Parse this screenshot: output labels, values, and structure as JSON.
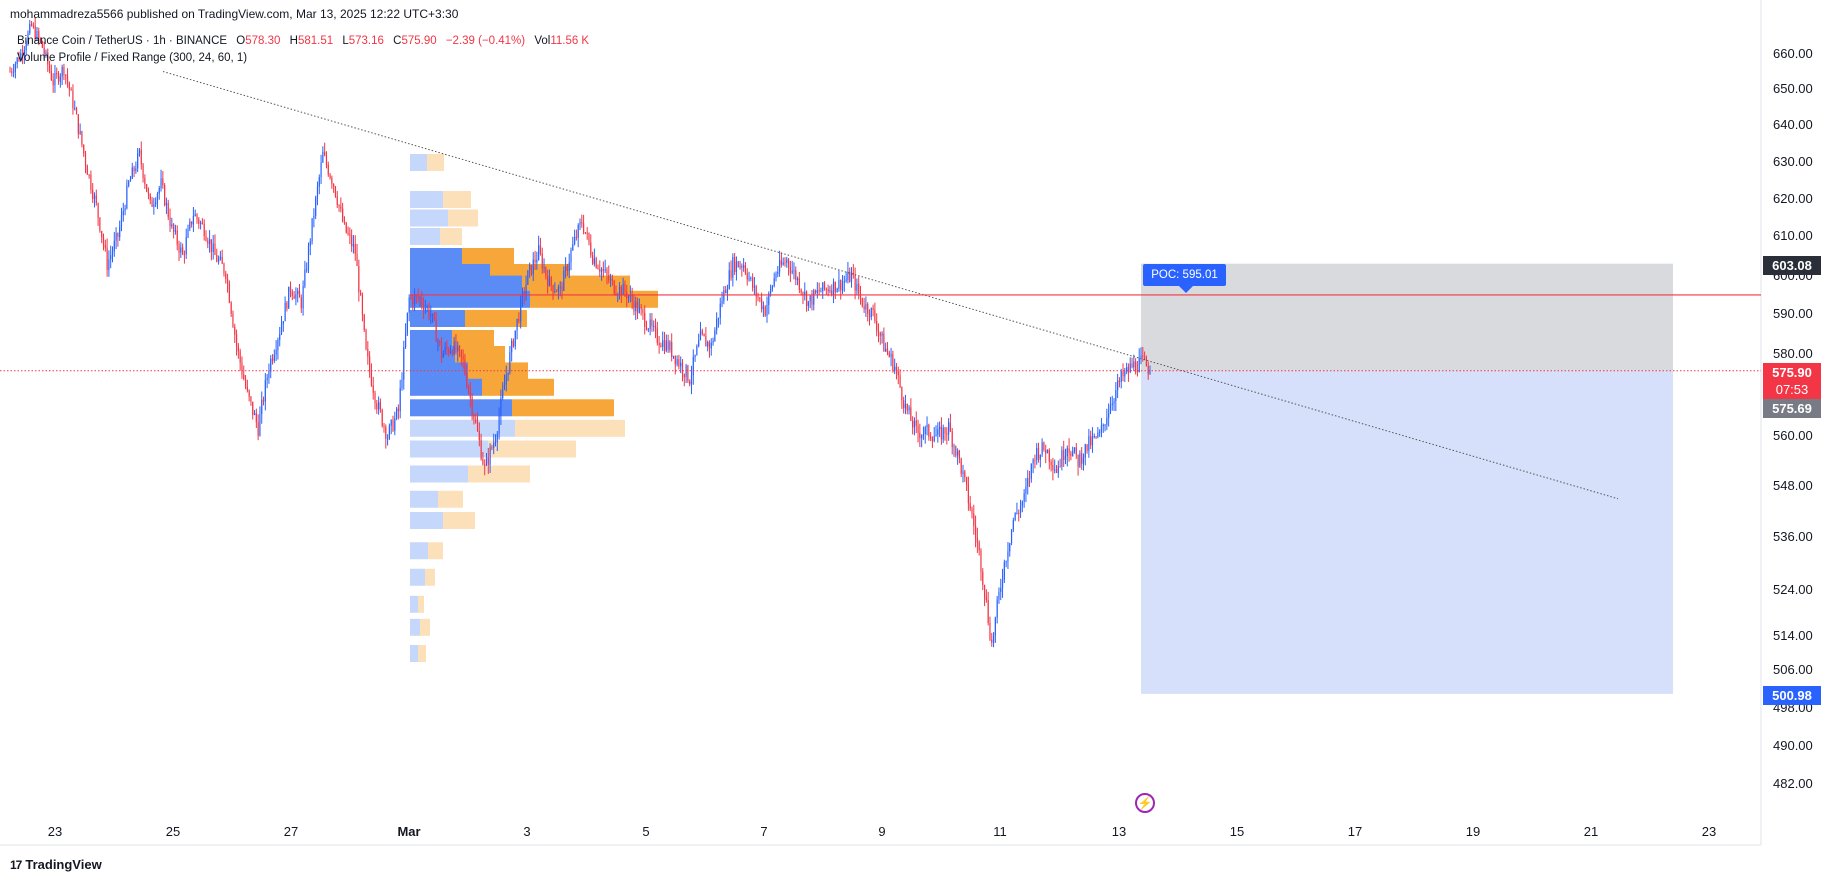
{
  "header": {
    "published": "mohammadreza5566 published on TradingView.com, Mar 13, 2025 12:22 UTC+3:30"
  },
  "legend": {
    "symbol": "Binance Coin / TetherUS · 1h · BINANCE",
    "open_label": "O",
    "open": "578.30",
    "high_label": "H",
    "high": "581.51",
    "low_label": "L",
    "low": "573.16",
    "close_label": "C",
    "close": "575.90",
    "change": "−2.39 (−0.41%)",
    "vol_label": "Vol",
    "vol": "11.56 K",
    "indicator": "Volume Profile / Fixed Range (300, 24, 60, 1)"
  },
  "brand": {
    "name": "TradingView",
    "logo_text": "17",
    "icon": "tradingview-logo-icon"
  },
  "badges": {
    "top": "603.08",
    "last_price": "575.90",
    "countdown": "07:53",
    "secondary": "575.69",
    "bottom": "500.98"
  },
  "poc": {
    "label": "POC: 595.01"
  },
  "flash_icon": "lightning-icon",
  "colors": {
    "up": "#2962ff",
    "down": "#f23645",
    "vp_up": "#5b8cf5",
    "vp_down": "#f7a63a",
    "zone_gray": "#d4d6d9",
    "zone_blue": "#d6e0fb",
    "poc_line": "#f23645",
    "price_line": "#f23645"
  },
  "chart_data": {
    "type": "candlestick",
    "timeframe": "1h",
    "xlabels": [
      "23",
      "25",
      "27",
      "Mar",
      "3",
      "5",
      "7",
      "9",
      "11",
      "13",
      "15",
      "17",
      "19",
      "21",
      "23"
    ],
    "yticks": [
      660,
      650,
      640,
      630,
      620,
      610,
      600,
      590,
      580,
      570,
      560,
      548,
      536,
      524,
      514,
      506,
      498,
      490,
      482
    ],
    "ylabels": [
      "660.00",
      "650.00",
      "640.00",
      "630.00",
      "620.00",
      "610.00",
      "600.00",
      "590.00",
      "580.00",
      "570.00",
      "560.00",
      "548.00",
      "536.00",
      "524.00",
      "514.00",
      "506.00",
      "498.00",
      "490.00",
      "482.00"
    ],
    "path": [
      [
        0,
        655
      ],
      [
        6,
        660
      ],
      [
        12,
        668
      ],
      [
        18,
        662
      ],
      [
        24,
        652
      ],
      [
        30,
        656
      ],
      [
        36,
        644
      ],
      [
        42,
        630
      ],
      [
        48,
        618
      ],
      [
        54,
        603
      ],
      [
        60,
        610
      ],
      [
        66,
        624
      ],
      [
        72,
        632
      ],
      [
        78,
        618
      ],
      [
        84,
        624
      ],
      [
        90,
        612
      ],
      [
        96,
        605
      ],
      [
        102,
        616
      ],
      [
        108,
        612
      ],
      [
        114,
        605
      ],
      [
        120,
        601
      ],
      [
        126,
        582
      ],
      [
        132,
        570
      ],
      [
        138,
        562
      ],
      [
        144,
        577
      ],
      [
        150,
        586
      ],
      [
        156,
        597
      ],
      [
        162,
        593
      ],
      [
        168,
        613
      ],
      [
        174,
        632
      ],
      [
        180,
        624
      ],
      [
        186,
        612
      ],
      [
        192,
        606
      ],
      [
        198,
        580
      ],
      [
        204,
        568
      ],
      [
        210,
        560
      ],
      [
        216,
        566
      ],
      [
        222,
        594
      ],
      [
        228,
        594
      ],
      [
        234,
        590
      ],
      [
        240,
        580
      ],
      [
        246,
        582
      ],
      [
        252,
        578
      ],
      [
        258,
        565
      ],
      [
        264,
        552
      ],
      [
        270,
        560
      ],
      [
        276,
        575
      ],
      [
        282,
        588
      ],
      [
        288,
        600
      ],
      [
        294,
        606
      ],
      [
        300,
        598
      ],
      [
        306,
        596
      ],
      [
        312,
        606
      ],
      [
        318,
        614
      ],
      [
        324,
        605
      ],
      [
        330,
        601
      ],
      [
        336,
        597
      ],
      [
        342,
        596
      ],
      [
        348,
        592
      ],
      [
        354,
        588
      ],
      [
        360,
        584
      ],
      [
        366,
        582
      ],
      [
        372,
        578
      ],
      [
        378,
        574
      ],
      [
        384,
        584
      ],
      [
        390,
        582
      ],
      [
        396,
        594
      ],
      [
        402,
        603
      ],
      [
        408,
        603
      ],
      [
        414,
        596
      ],
      [
        420,
        591
      ],
      [
        426,
        601
      ],
      [
        432,
        604
      ],
      [
        438,
        599
      ],
      [
        444,
        593
      ],
      [
        450,
        596
      ],
      [
        456,
        597
      ],
      [
        462,
        598
      ],
      [
        468,
        600
      ],
      [
        474,
        593
      ],
      [
        480,
        590
      ],
      [
        486,
        582
      ],
      [
        492,
        577
      ],
      [
        498,
        567
      ],
      [
        504,
        561
      ],
      [
        510,
        561
      ],
      [
        516,
        560
      ],
      [
        522,
        562
      ],
      [
        528,
        554
      ],
      [
        534,
        543
      ],
      [
        540,
        530
      ],
      [
        546,
        512
      ],
      [
        552,
        528
      ],
      [
        558,
        540
      ],
      [
        564,
        545
      ],
      [
        570,
        556
      ],
      [
        576,
        557
      ],
      [
        582,
        552
      ],
      [
        588,
        558
      ],
      [
        594,
        554
      ],
      [
        600,
        558
      ],
      [
        606,
        560
      ],
      [
        612,
        568
      ],
      [
        618,
        574
      ],
      [
        624,
        577
      ],
      [
        630,
        578
      ],
      [
        634,
        576
      ]
    ],
    "last_index": 634,
    "ohlc_last": {
      "open": 578.3,
      "high": 581.51,
      "low": 573.16,
      "close": 575.9
    },
    "last_price": 575.9,
    "poc": 595.01,
    "zone": {
      "top": 603.08,
      "mid": 575.9,
      "bottom": 500.98
    },
    "trendline": {
      "from": {
        "x_date": "Feb 24",
        "price": 655.0
      },
      "to": {
        "x_date": "Mar 21",
        "price": 545.0
      }
    },
    "volume_profile": {
      "rows": [
        {
          "price": 630,
          "up": 17,
          "down": 17,
          "active": false
        },
        {
          "price": 620,
          "up": 33,
          "down": 28,
          "active": false
        },
        {
          "price": 615,
          "up": 38,
          "down": 30,
          "active": false
        },
        {
          "price": 610,
          "up": 30,
          "down": 22,
          "active": false
        },
        {
          "price": 605,
          "up": 52,
          "down": 52,
          "active": true
        },
        {
          "price": 601,
          "up": 80,
          "down": 80,
          "active": true
        },
        {
          "price": 598,
          "up": 112,
          "down": 108,
          "active": true
        },
        {
          "price": 594,
          "up": 120,
          "down": 128,
          "active": true
        },
        {
          "price": 589,
          "up": 55,
          "down": 62,
          "active": true
        },
        {
          "price": 584,
          "up": 42,
          "down": 42,
          "active": true
        },
        {
          "price": 580,
          "up": 45,
          "down": 50,
          "active": true
        },
        {
          "price": 576,
          "up": 58,
          "down": 60,
          "active": true
        },
        {
          "price": 572,
          "up": 72,
          "down": 72,
          "active": true
        },
        {
          "price": 567,
          "up": 102,
          "down": 102,
          "active": true
        },
        {
          "price": 562,
          "up": 105,
          "down": 110,
          "active": false
        },
        {
          "price": 557,
          "up": 78,
          "down": 88,
          "active": false
        },
        {
          "price": 551,
          "up": 58,
          "down": 62,
          "active": false
        },
        {
          "price": 545,
          "up": 28,
          "down": 25,
          "active": false
        },
        {
          "price": 540,
          "up": 33,
          "down": 32,
          "active": false
        },
        {
          "price": 533,
          "up": 18,
          "down": 15,
          "active": false
        },
        {
          "price": 527,
          "up": 15,
          "down": 10,
          "active": false
        },
        {
          "price": 521,
          "up": 8,
          "down": 6,
          "active": false
        },
        {
          "price": 516,
          "up": 10,
          "down": 10,
          "active": false
        },
        {
          "price": 510,
          "up": 8,
          "down": 8,
          "active": false
        }
      ]
    }
  }
}
